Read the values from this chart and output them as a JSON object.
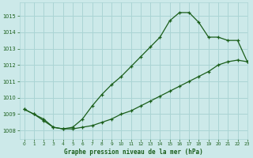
{
  "title": "Graphe pression niveau de la mer (hPa)",
  "background_color": "#cce9e9",
  "grid_color": "#aad4d4",
  "line_color": "#1a5e1a",
  "xlim": [
    -0.5,
    23
  ],
  "ylim": [
    1007.5,
    1015.8
  ],
  "xticks": [
    0,
    1,
    2,
    3,
    4,
    5,
    6,
    7,
    8,
    9,
    10,
    11,
    12,
    13,
    14,
    15,
    16,
    17,
    18,
    19,
    20,
    21,
    22,
    23
  ],
  "yticks": [
    1008,
    1009,
    1010,
    1011,
    1012,
    1013,
    1014,
    1015
  ],
  "series1_x": [
    0,
    1,
    2,
    3,
    4,
    5,
    6,
    7,
    8,
    9,
    10,
    11,
    12,
    13,
    14,
    15,
    16,
    17,
    18,
    19,
    20,
    21,
    22,
    23
  ],
  "series1_y": [
    1009.3,
    1009.0,
    1008.7,
    1008.2,
    1008.1,
    1008.2,
    1008.7,
    1009.5,
    1010.2,
    1010.8,
    1011.3,
    1011.9,
    1012.5,
    1013.1,
    1013.7,
    1014.7,
    1015.2,
    1015.2,
    1014.6,
    1013.7,
    1013.7,
    1013.5,
    1013.5,
    1012.2
  ],
  "series2_x": [
    0,
    1,
    2,
    3,
    4,
    5,
    6,
    7,
    8,
    9,
    10,
    11,
    12,
    13,
    14,
    15,
    16,
    17,
    18,
    19,
    20,
    21,
    22,
    23
  ],
  "series2_y": [
    1009.3,
    1009.0,
    1008.6,
    1008.2,
    1008.1,
    1008.1,
    1008.2,
    1008.3,
    1008.5,
    1008.7,
    1009.0,
    1009.2,
    1009.5,
    1009.8,
    1010.1,
    1010.4,
    1010.7,
    1011.0,
    1011.3,
    1011.6,
    1012.0,
    1012.2,
    1012.3,
    1012.2
  ]
}
